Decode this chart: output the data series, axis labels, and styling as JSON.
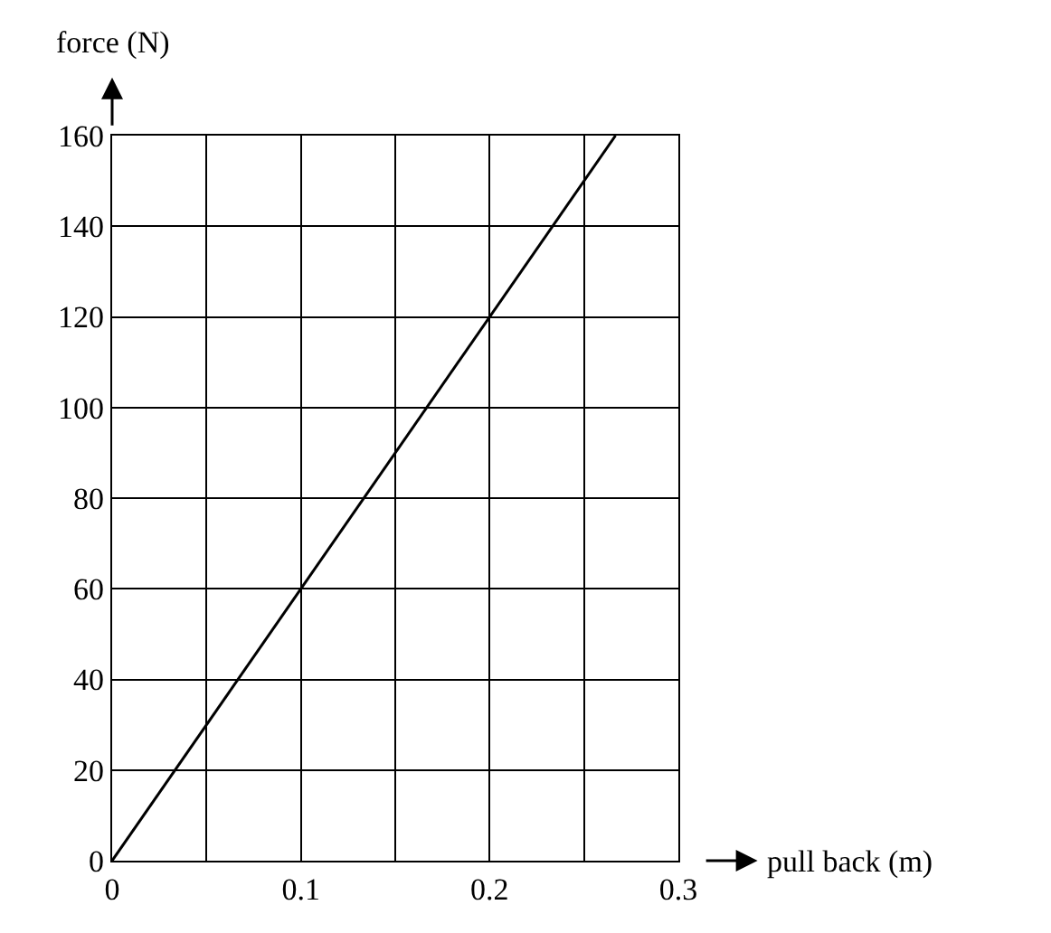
{
  "chart_data": {
    "type": "line",
    "xlabel": "pull back (m)",
    "ylabel": "force (N)",
    "x": [
      0,
      0.2667
    ],
    "series": [
      {
        "color": "#000000",
        "values": [
          0,
          160
        ]
      }
    ],
    "xlim": [
      0,
      0.3
    ],
    "xticks": [
      0,
      {
        "value": 0.05,
        "label": null
      },
      0.1,
      {
        "value": 0.15,
        "label": null
      },
      0.2,
      {
        "value": 0.25,
        "label": null
      },
      0.3
    ],
    "ylim": [
      0,
      160
    ],
    "yticks": [
      0,
      20,
      40,
      60,
      80,
      100,
      120,
      140,
      160
    ],
    "grid": true,
    "marker": "none",
    "line_style": "solid"
  }
}
